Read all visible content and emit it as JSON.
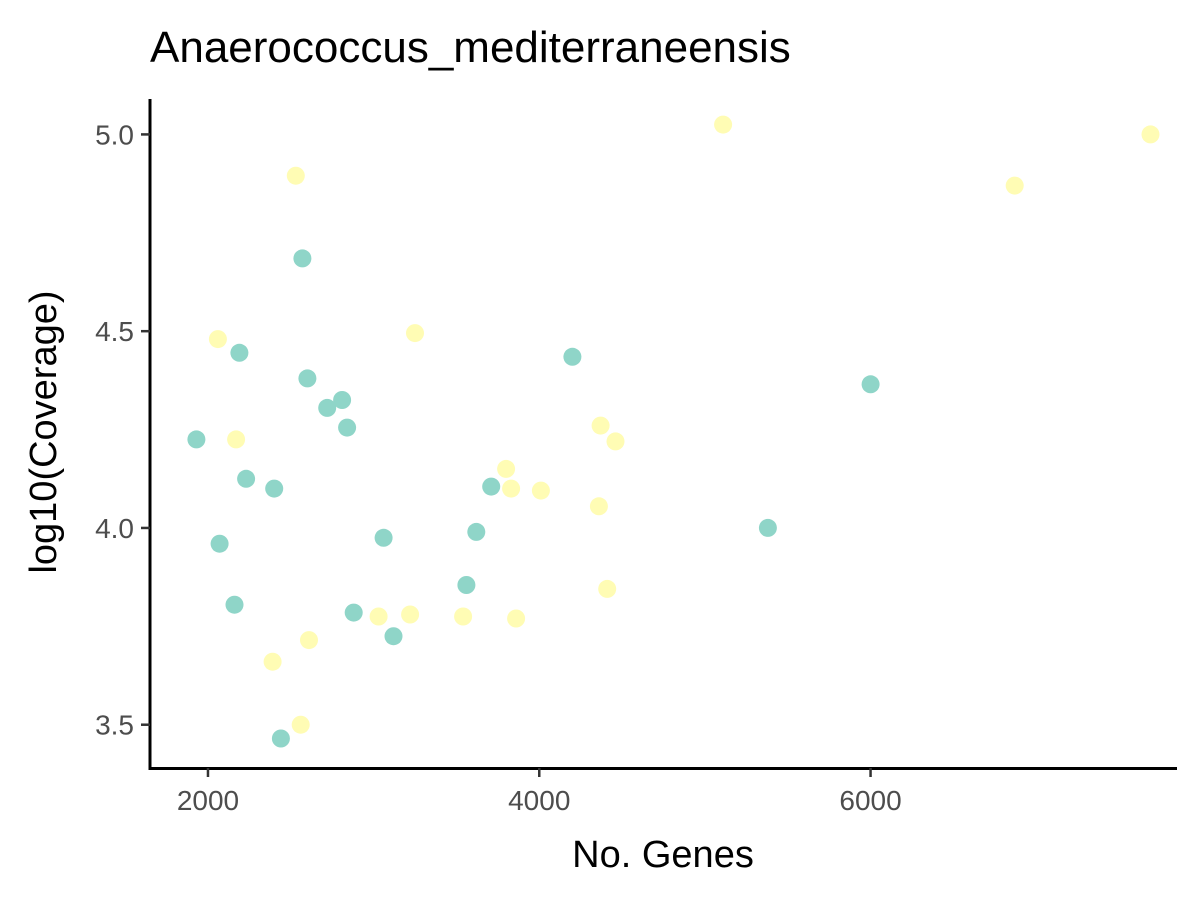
{
  "chart_data": {
    "type": "scatter",
    "title": "Anaerococcus_mediterraneensis",
    "xlabel": "No. Genes",
    "ylabel": "log10(Coverage)",
    "xlim": [
      1650,
      7850
    ],
    "ylim": [
      3.39,
      5.09
    ],
    "xticks": [
      {
        "value": 2000,
        "label": "2000"
      },
      {
        "value": 4000,
        "label": "4000"
      },
      {
        "value": 6000,
        "label": "6000"
      }
    ],
    "yticks": [
      {
        "value": 3.5,
        "label": "3.5"
      },
      {
        "value": 4.0,
        "label": "4.0"
      },
      {
        "value": 4.5,
        "label": "4.5"
      },
      {
        "value": 5.0,
        "label": "5.0"
      }
    ],
    "grid": false,
    "legend": "none",
    "series": [
      {
        "color": "#8fd5c8",
        "points": [
          [
            1930,
            4.225
          ],
          [
            2070,
            3.96
          ],
          [
            2160,
            3.805
          ],
          [
            2190,
            4.445
          ],
          [
            2230,
            4.125
          ],
          [
            2400,
            4.1
          ],
          [
            2440,
            3.465
          ],
          [
            2570,
            4.685
          ],
          [
            2600,
            4.38
          ],
          [
            2720,
            4.305
          ],
          [
            2810,
            4.325
          ],
          [
            2840,
            4.255
          ],
          [
            2880,
            3.785
          ],
          [
            3060,
            3.975
          ],
          [
            3120,
            3.725
          ],
          [
            3560,
            3.855
          ],
          [
            3620,
            3.99
          ],
          [
            3710,
            4.105
          ],
          [
            4200,
            4.435
          ],
          [
            5380,
            4.0
          ],
          [
            6000,
            4.365
          ]
        ]
      },
      {
        "color": "#fffcb4",
        "points": [
          [
            2060,
            4.48
          ],
          [
            2170,
            4.225
          ],
          [
            2390,
            3.66
          ],
          [
            2530,
            4.895
          ],
          [
            2560,
            3.5
          ],
          [
            2610,
            3.715
          ],
          [
            3030,
            3.775
          ],
          [
            3220,
            3.78
          ],
          [
            3250,
            4.495
          ],
          [
            3540,
            3.775
          ],
          [
            3800,
            4.15
          ],
          [
            3830,
            4.1
          ],
          [
            3860,
            3.77
          ],
          [
            4010,
            4.095
          ],
          [
            4360,
            4.055
          ],
          [
            4370,
            4.26
          ],
          [
            4410,
            3.845
          ],
          [
            4460,
            4.22
          ],
          [
            5110,
            5.025
          ],
          [
            6870,
            4.87
          ],
          [
            7690,
            5.0
          ]
        ]
      }
    ]
  }
}
